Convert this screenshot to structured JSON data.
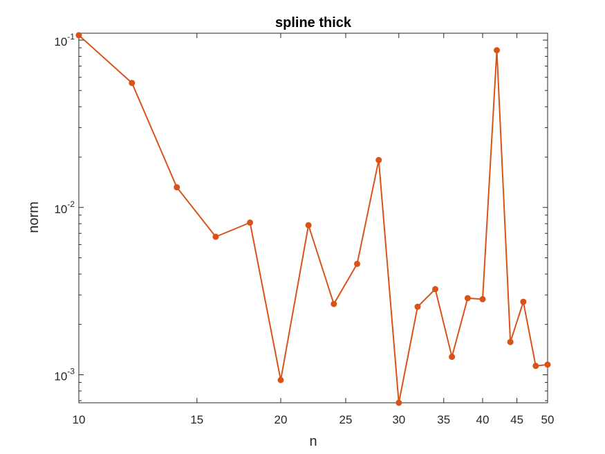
{
  "chart_data": {
    "type": "line",
    "title": "spline thick",
    "xlabel": "n",
    "ylabel": "norm",
    "x_scale": "log",
    "y_scale": "log",
    "xlim": [
      10,
      50
    ],
    "ylim": [
      0.00068,
      0.11
    ],
    "grid": false,
    "legend": "none",
    "x_ticks": [
      {
        "value": 10,
        "label": "10"
      },
      {
        "value": 15,
        "label": "15"
      },
      {
        "value": 20,
        "label": "20"
      },
      {
        "value": 25,
        "label": "25"
      },
      {
        "value": 30,
        "label": "30"
      },
      {
        "value": 35,
        "label": "35"
      },
      {
        "value": 40,
        "label": "40"
      },
      {
        "value": 45,
        "label": "45"
      },
      {
        "value": 50,
        "label": "50"
      }
    ],
    "y_ticks": [
      {
        "value": 0.001,
        "base": "10",
        "exp": "-3"
      },
      {
        "value": 0.01,
        "base": "10",
        "exp": "-2"
      },
      {
        "value": 0.1,
        "base": "10",
        "exp": "-1"
      }
    ],
    "series": [
      {
        "color": "#D95319",
        "marker": "circle",
        "x": [
          10,
          12,
          14,
          16,
          18,
          20,
          22,
          24,
          26,
          28,
          30,
          32,
          34,
          36,
          38,
          40,
          42,
          44,
          46,
          48,
          50
        ],
        "y": [
          0.107,
          0.0555,
          0.0132,
          0.00668,
          0.00812,
          0.00093,
          0.00783,
          0.00265,
          0.0046,
          0.0192,
          0.00068,
          0.00255,
          0.00325,
          0.00128,
          0.00287,
          0.00283,
          0.087,
          0.00157,
          0.00273,
          0.00113,
          0.00115
        ]
      }
    ]
  }
}
